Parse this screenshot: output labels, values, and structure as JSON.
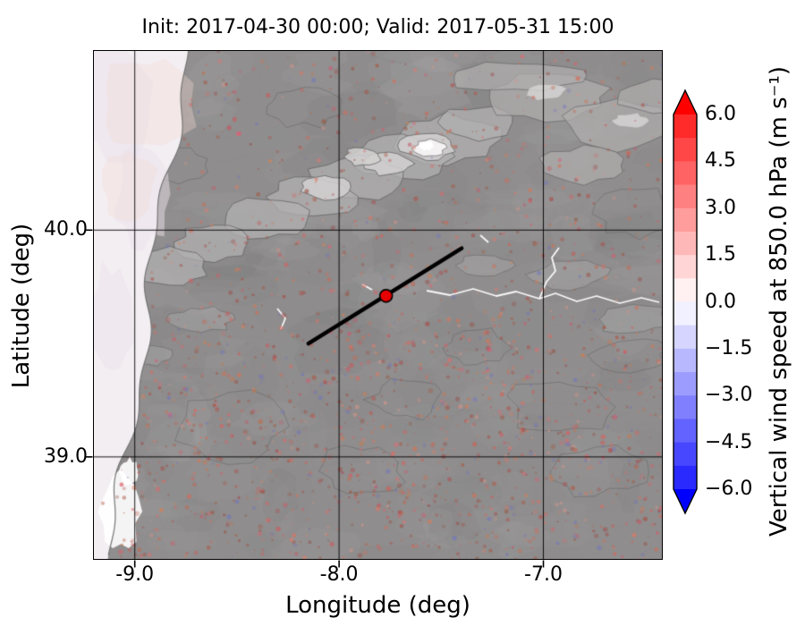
{
  "chart_data": {
    "type": "heatmap",
    "title": "Init: 2017-04-30 00:00; Valid: 2017-05-31 15:00",
    "xlabel": "Longitude (deg)",
    "ylabel": "Latitude (deg)",
    "x_range": [
      -9.2,
      -6.42
    ],
    "y_range": [
      38.55,
      40.79
    ],
    "x_ticks": [
      -9.0,
      -8.0,
      -7.0
    ],
    "x_tick_labels": [
      "-9.0",
      "-8.0",
      "-7.0"
    ],
    "y_ticks": [
      39.0,
      40.0
    ],
    "y_tick_labels": [
      "39.0",
      "40.0"
    ],
    "grid": true,
    "field": "vertical wind speed at 850.0 hPa shaded over gray terrain hillshade; values mostly near 0 m/s with scattered weak positive (red) speckles, densest south of 39.5N; ocean west of the coastline near zero",
    "colorbar": {
      "label": "Vertical wind speed at 850.0 hPa (m s⁻¹)",
      "tick_labels": [
        "6.0",
        "4.5",
        "3.0",
        "1.5",
        "0.0",
        "−1.5",
        "−3.0",
        "−4.5",
        "−6.0"
      ],
      "tick_values": [
        6.0,
        4.5,
        3.0,
        1.5,
        0.0,
        -1.5,
        -3.0,
        -4.5,
        -6.0
      ],
      "vmin": -6.0,
      "vmax": 6.0,
      "levels_step": 0.75,
      "colormap": "bwr",
      "extend": "both",
      "color_positive": "#ff0000",
      "color_zero": "#ffffff",
      "color_negative": "#0000ff"
    },
    "overlays": {
      "cross_section_line": {
        "lon": [
          -8.15,
          -7.4
        ],
        "lat": [
          39.5,
          39.92
        ],
        "color": "#000000"
      },
      "station_marker": {
        "lon": -7.77,
        "lat": 39.71,
        "color": "#e60000",
        "edge_color": "#000000"
      }
    }
  }
}
